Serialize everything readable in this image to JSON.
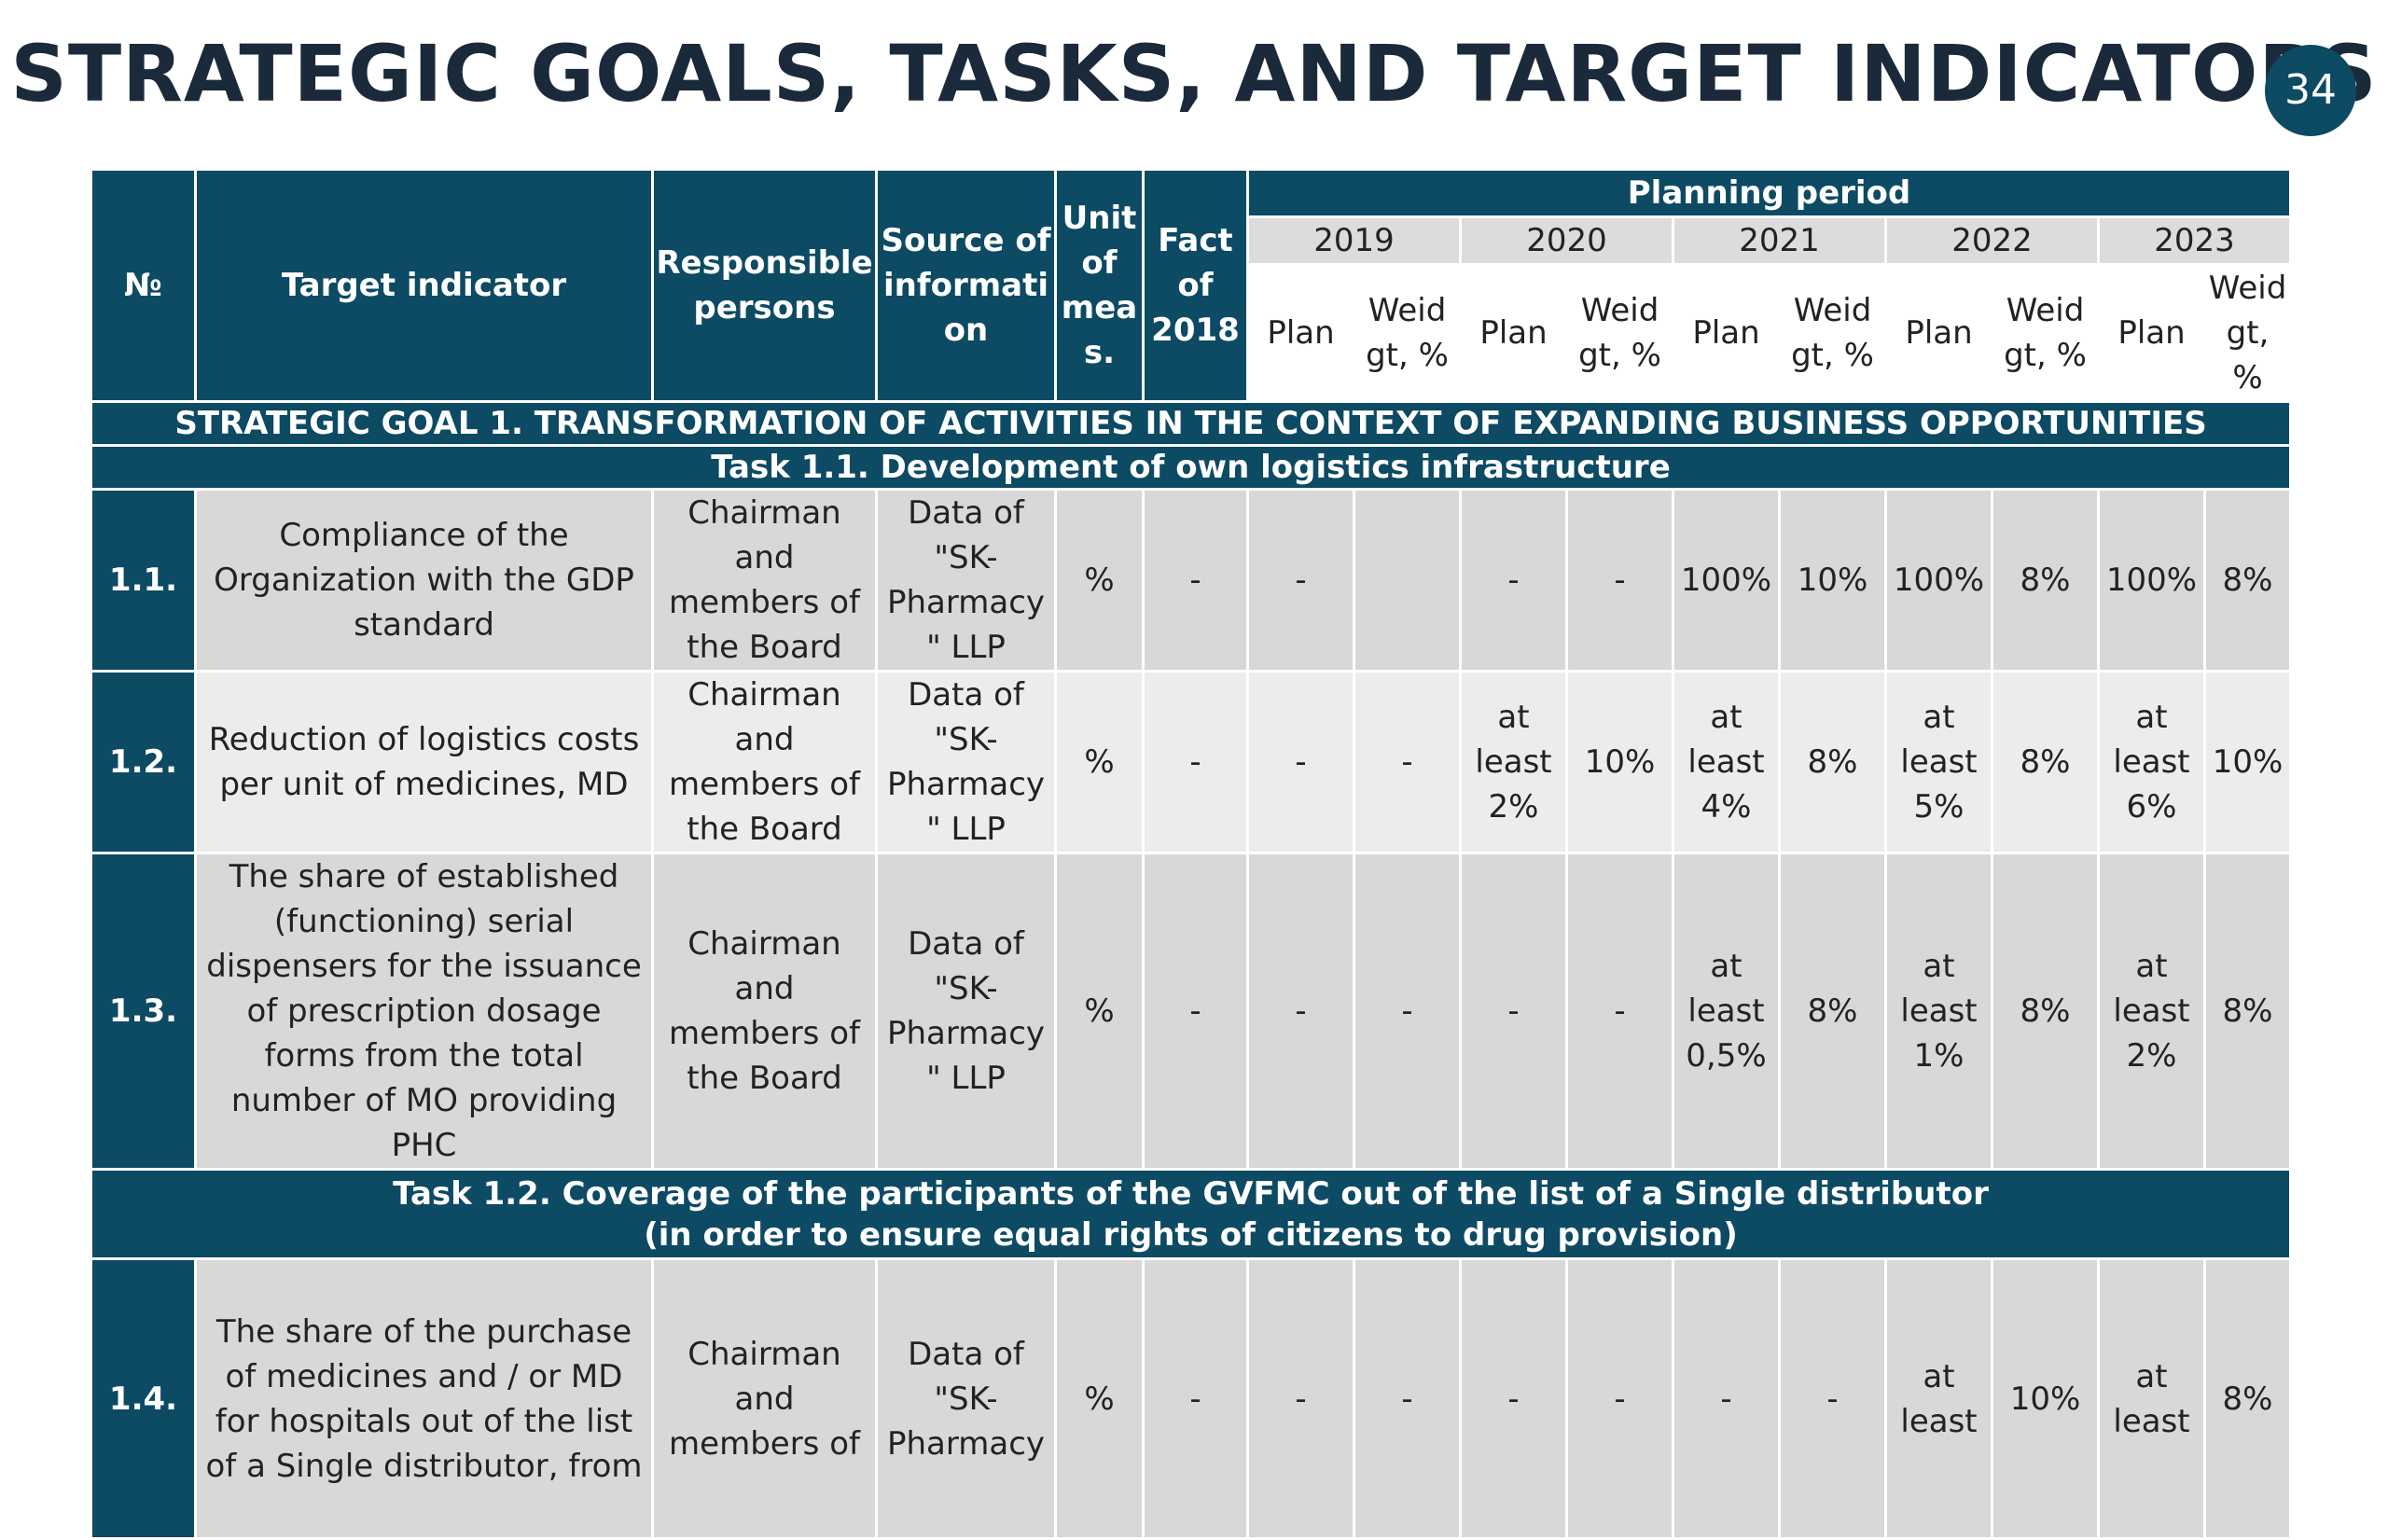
{
  "title": "STRATEGIC GOALS, TASKS, AND TARGET INDICATORS",
  "page_number": "34",
  "colors": {
    "header": "#0d4a63",
    "row_dark": "#d8d8d8",
    "row_light": "#ececec",
    "year_band": "#dcdcdc"
  },
  "header": {
    "no": "№",
    "target": "Target indicator",
    "responsible": "Responsible persons",
    "source": "Source of informati on",
    "unit": "Unit of mea s.",
    "fact": "Fact of 2018",
    "planning": "Planning period",
    "years": [
      "2019",
      "2020",
      "2021",
      "2022",
      "2023"
    ],
    "plan": "Plan",
    "weight": "Weid gt, %"
  },
  "goal1": "STRATEGIC GOAL 1. TRANSFORMATION OF ACTIVITIES IN THE CONTEXT OF EXPANDING BUSINESS OPPORTUNITIES",
  "task11": "Task 1.1. Development of own logistics infrastructure",
  "task12_line1": "Task 1.2. Coverage of the participants of the GVFMC out of the list of a Single distributor",
  "task12_line2": "(in order to ensure equal rights of citizens to drug provision)",
  "rows": [
    {
      "no": "1.1.",
      "indicator": "Compliance of the Organization with the GDP standard",
      "responsible": "Chairman and members of the Board",
      "source": "Data of \"SK-Pharmacy \" LLP",
      "unit": "%",
      "fact": "-",
      "cells": [
        "-",
        "",
        "-",
        "-",
        "100%",
        "10%",
        "100%",
        "8%",
        "100%",
        "8%"
      ]
    },
    {
      "no": "1.2.",
      "indicator": "Reduction of logistics costs per unit of medicines, MD",
      "responsible": "Chairman and members of the Board",
      "source": "Data of \"SK-Pharmacy \" LLP",
      "unit": "%",
      "fact": "-",
      "cells": [
        "-",
        "-",
        "at least 2%",
        "10%",
        "at least 4%",
        "8%",
        "at least 5%",
        "8%",
        "at least 6%",
        "10%"
      ]
    },
    {
      "no": "1.3.",
      "indicator": "The share of established (functioning) serial dispensers for the issuance of prescription dosage forms from the total number of MO providing PHC",
      "responsible": "Chairman and members of the Board",
      "source": "Data of \"SK-Pharmacy \" LLP",
      "unit": "%",
      "fact": "-",
      "cells": [
        "-",
        "-",
        "-",
        "-",
        "at least 0,5%",
        "8%",
        "at least 1%",
        "8%",
        "at least 2%",
        "8%"
      ]
    },
    {
      "no": "1.4.",
      "indicator": "The share of the purchase of medicines and / or MD for hospitals out of the list of a Single distributor, from",
      "responsible": "Chairman and members of",
      "source": "Data of \"SK-Pharmacy",
      "unit": "%",
      "fact": "-",
      "cells": [
        "-",
        "-",
        "-",
        "-",
        "-",
        "-",
        "at least",
        "10%",
        "at least",
        "8%"
      ]
    }
  ]
}
